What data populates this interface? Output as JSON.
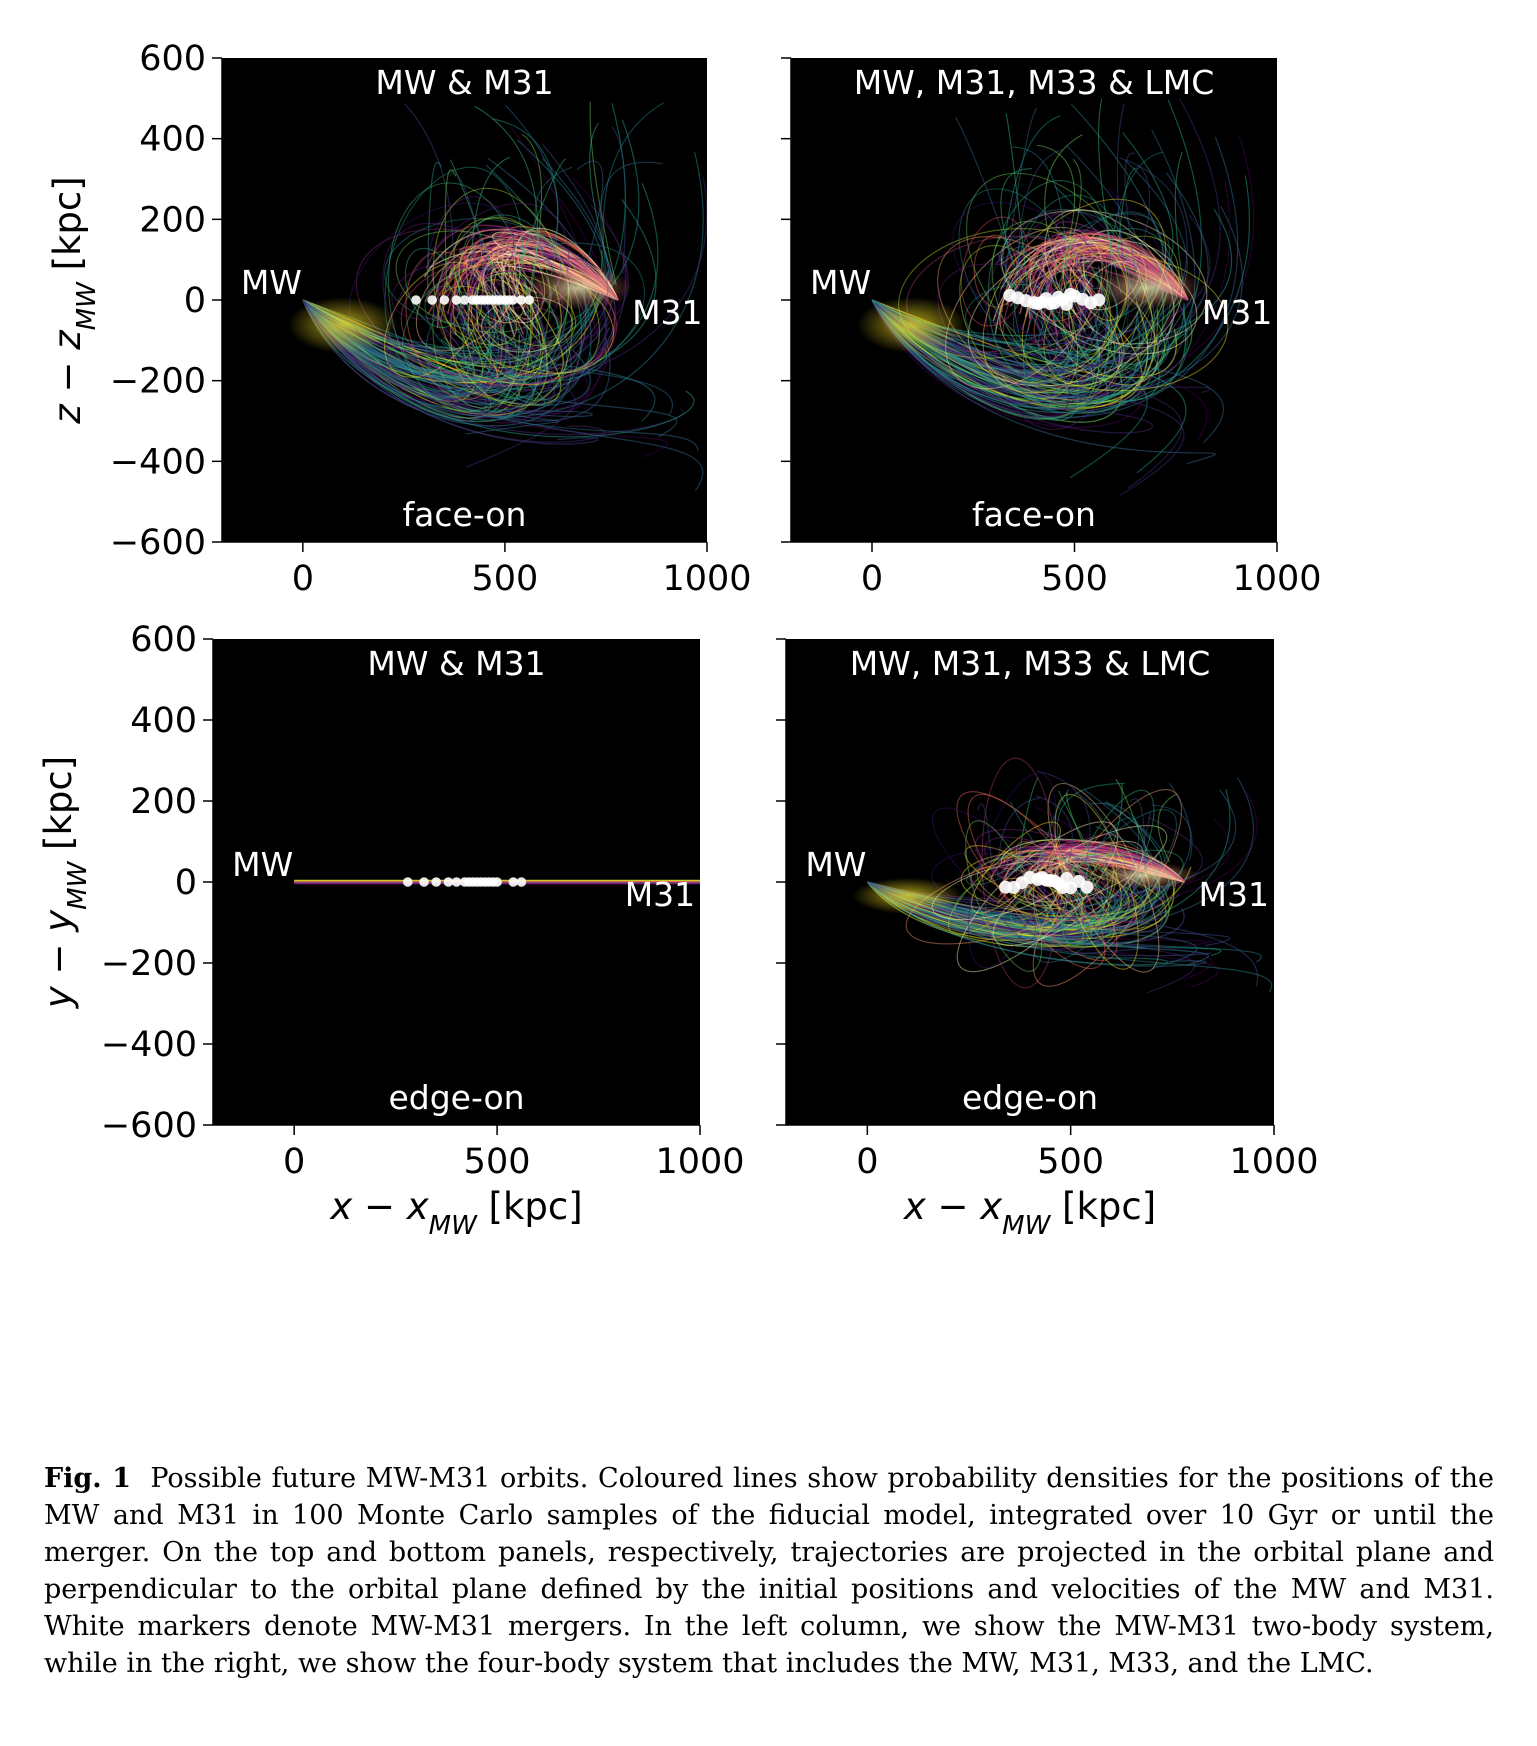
{
  "figure": {
    "panels": [
      {
        "id": "top-left",
        "title": "MW & M31",
        "projection": "face-on",
        "ylabel_main": "z − z",
        "ylabel_sub": "MW",
        "ylabel_unit": " [kpc]",
        "xlabel_main": "",
        "xlabel_sub": "",
        "xlabel_unit": "",
        "mw_label": "MW",
        "m31_label": "M31",
        "plane": "face"
      },
      {
        "id": "top-right",
        "title": "MW, M31, M33 & LMC",
        "projection": "face-on",
        "ylabel_main": "",
        "ylabel_sub": "",
        "ylabel_unit": "",
        "xlabel_main": "",
        "xlabel_sub": "",
        "xlabel_unit": "",
        "mw_label": "MW",
        "m31_label": "M31",
        "plane": "face4"
      },
      {
        "id": "bottom-left",
        "title": "MW & M31",
        "projection": "edge-on",
        "ylabel_main": "y − y",
        "ylabel_sub": "MW",
        "ylabel_unit": " [kpc]",
        "xlabel_main": "x − x",
        "xlabel_sub": "MW",
        "xlabel_unit": " [kpc]",
        "mw_label": "MW",
        "m31_label": "M31",
        "plane": "edge"
      },
      {
        "id": "bottom-right",
        "title": "MW, M31, M33 & LMC",
        "projection": "edge-on",
        "ylabel_main": "",
        "ylabel_sub": "",
        "ylabel_unit": "",
        "xlabel_main": "x − x",
        "xlabel_sub": "MW",
        "xlabel_unit": " [kpc]",
        "mw_label": "MW",
        "m31_label": "M31",
        "plane": "edge4"
      }
    ],
    "x_ticks": [
      "0",
      "500",
      "1000"
    ],
    "y_ticks": [
      "600",
      "400",
      "200",
      "0",
      "−200",
      "−400",
      "−600"
    ],
    "colors": {
      "background": "#000000",
      "marker": "#ffffff"
    }
  },
  "chart_data": [
    {
      "type": "line",
      "title": "MW & M31",
      "annotation": "face-on",
      "xlim": [
        -200,
        1000
      ],
      "ylim": [
        -600,
        600
      ],
      "xlabel": "",
      "ylabel": "z − z_MW [kpc]",
      "x_ticks": [
        0,
        500,
        1000
      ],
      "y_ticks": [
        600,
        400,
        200,
        0,
        -200,
        -400,
        -600
      ],
      "labels": [
        {
          "text": "MW",
          "x": 0,
          "y": 0
        },
        {
          "text": "M31",
          "x": 780,
          "y": 0
        }
      ],
      "merger_markers_x": [
        280,
        320,
        350,
        380,
        400,
        420,
        430,
        440,
        450,
        460,
        470,
        480,
        490,
        500,
        510,
        520,
        540,
        560
      ]
    },
    {
      "type": "line",
      "title": "MW, M31, M33 & LMC",
      "annotation": "face-on",
      "xlim": [
        -200,
        1000
      ],
      "ylim": [
        -600,
        600
      ],
      "xlabel": "",
      "ylabel": "",
      "x_ticks": [
        0,
        500,
        1000
      ],
      "y_ticks": [
        600,
        400,
        200,
        0,
        -200,
        -400,
        -600
      ],
      "labels": [
        {
          "text": "MW",
          "x": 0,
          "y": 0
        },
        {
          "text": "M31",
          "x": 780,
          "y": 0
        }
      ],
      "merger_markers_x": [
        340,
        360,
        380,
        400,
        410,
        420,
        430,
        440,
        450,
        460,
        470,
        480,
        490,
        500,
        520,
        540,
        560
      ]
    },
    {
      "type": "line",
      "title": "MW & M31",
      "annotation": "edge-on",
      "xlim": [
        -200,
        1000
      ],
      "ylim": [
        -600,
        600
      ],
      "xlabel": "x − x_MW [kpc]",
      "ylabel": "y − y_MW [kpc]",
      "x_ticks": [
        0,
        500,
        1000
      ],
      "y_ticks": [
        600,
        400,
        200,
        0,
        -200,
        -400,
        -600
      ],
      "labels": [
        {
          "text": "MW",
          "x": 0,
          "y": 0
        },
        {
          "text": "M31",
          "x": 780,
          "y": 0
        }
      ],
      "merger_markers_x": [
        280,
        320,
        350,
        380,
        400,
        420,
        430,
        440,
        450,
        460,
        470,
        480,
        490,
        500,
        540,
        560
      ]
    },
    {
      "type": "line",
      "title": "MW, M31, M33 & LMC",
      "annotation": "edge-on",
      "xlim": [
        -200,
        1000
      ],
      "ylim": [
        -600,
        600
      ],
      "xlabel": "x − x_MW [kpc]",
      "ylabel": "",
      "x_ticks": [
        0,
        500,
        1000
      ],
      "y_ticks": [
        600,
        400,
        200,
        0,
        -200,
        -400,
        -600
      ],
      "labels": [
        {
          "text": "MW",
          "x": 0,
          "y": 0
        },
        {
          "text": "M31",
          "x": 780,
          "y": 0
        }
      ],
      "merger_markers_x": [
        340,
        360,
        380,
        400,
        420,
        430,
        440,
        450,
        460,
        470,
        480,
        490,
        500,
        520,
        540
      ]
    }
  ],
  "caption": {
    "label": "Fig. 1",
    "text": "Possible future MW-M31 orbits. Coloured lines show probability densities for the positions of the MW and M31 in 100 Monte Carlo samples of the fiducial model, integrated over 10 Gyr or until the merger. On the top and bottom panels, respectively, trajectories are projected in the orbital plane and perpendicular to the orbital plane defined by the initial positions and velocities of the MW and M31. White markers denote MW-M31 mergers. In the left column, we show the MW-M31 two-body system, while in the right, we show the four-body system that includes the MW, M31, M33, and the LMC."
  }
}
